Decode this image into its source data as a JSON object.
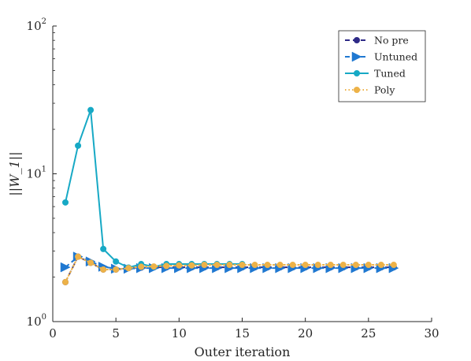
{
  "chart_data": {
    "type": "line",
    "xlabel": "Outer iteration",
    "ylabel": "||W_1||",
    "xlim": [
      0,
      30
    ],
    "ylim": [
      1,
      100
    ],
    "yscale": "log",
    "xticks": [
      0,
      5,
      10,
      15,
      20,
      25,
      30
    ],
    "xtick_labels": [
      "0",
      "5",
      "10",
      "15",
      "20",
      "25",
      "30"
    ],
    "yticks": [
      1,
      10,
      100
    ],
    "ytick_labels": [
      {
        "base": "10",
        "exp": "0"
      },
      {
        "base": "10",
        "exp": "1"
      },
      {
        "base": "10",
        "exp": "2"
      }
    ],
    "grid": false,
    "legend_position": "top-right",
    "series": [
      {
        "name": "No pre",
        "color": "#2e2a87",
        "line": "dashed",
        "marker": "circle",
        "x": [
          1,
          2,
          3,
          4,
          5,
          6,
          7,
          8,
          9,
          10,
          11,
          12,
          13,
          14,
          15,
          16,
          17,
          18,
          19,
          20,
          21,
          22,
          23,
          24,
          25,
          26,
          27
        ],
        "y": [
          1.85,
          2.75,
          2.5,
          2.25,
          2.25,
          2.3,
          2.32,
          2.33,
          2.33,
          2.33,
          2.33,
          2.33,
          2.33,
          2.33,
          2.33,
          2.33,
          2.33,
          2.33,
          2.33,
          2.33,
          2.33,
          2.33,
          2.33,
          2.33,
          2.33,
          2.33,
          2.33
        ]
      },
      {
        "name": "Untuned",
        "color": "#1f78d1",
        "line": "dashed",
        "marker": "triangle-right",
        "x": [
          1,
          2,
          3,
          4,
          5,
          6,
          7,
          8,
          9,
          10,
          11,
          12,
          13,
          14,
          15,
          16,
          17,
          18,
          19,
          20,
          21,
          22,
          23,
          24,
          25,
          26,
          27
        ],
        "y": [
          2.33,
          2.75,
          2.55,
          2.35,
          2.28,
          2.28,
          2.3,
          2.3,
          2.3,
          2.3,
          2.3,
          2.3,
          2.3,
          2.3,
          2.3,
          2.3,
          2.3,
          2.3,
          2.3,
          2.3,
          2.3,
          2.3,
          2.3,
          2.3,
          2.3,
          2.3,
          2.3
        ]
      },
      {
        "name": "Tuned",
        "color": "#17a9c5",
        "line": "solid",
        "marker": "circle",
        "x": [
          1,
          2,
          3,
          4,
          5,
          6,
          7,
          8,
          9,
          10,
          11,
          12,
          13,
          14,
          15
        ],
        "y": [
          6.4,
          15.5,
          27.0,
          3.1,
          2.55,
          2.32,
          2.45,
          2.35,
          2.45,
          2.45,
          2.45,
          2.45,
          2.45,
          2.45,
          2.45
        ]
      },
      {
        "name": "Poly",
        "color": "#edb248",
        "line": "dotted",
        "marker": "circle",
        "x": [
          1,
          2,
          3,
          4,
          5,
          6,
          7,
          8,
          9,
          10,
          11,
          12,
          13,
          14,
          15,
          16,
          17,
          18,
          19,
          20,
          21,
          22,
          23,
          24,
          25,
          26,
          27
        ],
        "y": [
          1.85,
          2.75,
          2.5,
          2.25,
          2.25,
          2.3,
          2.35,
          2.36,
          2.38,
          2.4,
          2.4,
          2.42,
          2.42,
          2.42,
          2.42,
          2.42,
          2.42,
          2.42,
          2.42,
          2.42,
          2.42,
          2.42,
          2.42,
          2.42,
          2.42,
          2.42,
          2.42
        ]
      }
    ]
  }
}
